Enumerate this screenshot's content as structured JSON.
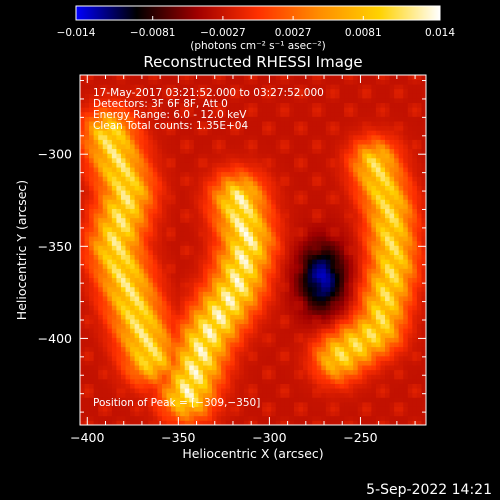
{
  "chart_data": {
    "type": "heatmap",
    "title": "Reconstructed RHESSI Image",
    "xlabel": "Heliocentric X (arcsec)",
    "ylabel": "Heliocentric Y (arcsec)",
    "xlim": [
      -404,
      -214
    ],
    "ylim": [
      -447,
      -257
    ],
    "x_ticks": [
      -400,
      -350,
      -300,
      -250
    ],
    "x_tick_labels": [
      "−400",
      "−350",
      "−300",
      "−250"
    ],
    "y_ticks": [
      -300,
      -350,
      -400
    ],
    "y_tick_labels": [
      "−300",
      "−350",
      "−400"
    ],
    "colorbar": {
      "range": [
        -0.014,
        0.014
      ],
      "ticks": [
        -0.014,
        -0.0081,
        -0.0027,
        0.0027,
        0.0081,
        0.014
      ],
      "tick_labels": [
        "−0.014",
        "−0.0081",
        "−0.0027",
        "0.0027",
        "0.0081",
        "0.014"
      ],
      "units": "(photons cm⁻² s⁻¹ asec⁻²)",
      "colormap": [
        "#0000ff",
        "#000000",
        "#a00000",
        "#ff3000",
        "#ff8c00",
        "#ffd200",
        "#ffffff"
      ]
    },
    "annotations": [
      "17-May-2017 03:21:52.000 to 03:27:52.000",
      "Detectors: 3F 6F 8F, Att 0",
      "Energy Range: 6.0 - 12.0 keV",
      "Clean    Total counts: 1.35E+04"
    ],
    "peak_label": "Position of Peak = [−309,−350]",
    "peak": {
      "x": -309,
      "y": -350
    },
    "sources": [
      {
        "name": "left arc",
        "points": [
          [
            -388,
            -290
          ],
          [
            -378,
            -320
          ],
          [
            -385,
            -350
          ],
          [
            -376,
            -378
          ],
          [
            -365,
            -410
          ]
        ],
        "width": 22,
        "value": 0.0125
      },
      {
        "name": "center arc",
        "points": [
          [
            -345,
            -430
          ],
          [
            -335,
            -400
          ],
          [
            -318,
            -372
          ],
          [
            -312,
            -348
          ],
          [
            -317,
            -325
          ]
        ],
        "width": 22,
        "value": 0.0138
      },
      {
        "name": "right arc",
        "points": [
          [
            -262,
            -410
          ],
          [
            -240,
            -395
          ],
          [
            -232,
            -360
          ],
          [
            -234,
            -330
          ],
          [
            -242,
            -305
          ]
        ],
        "width": 20,
        "value": 0.0118
      }
    ],
    "negative_blob": {
      "x": -271,
      "y": -367,
      "value": -0.014
    },
    "background_value": -0.003
  },
  "footer": {
    "date": "5-Sep-2022 14:21"
  }
}
